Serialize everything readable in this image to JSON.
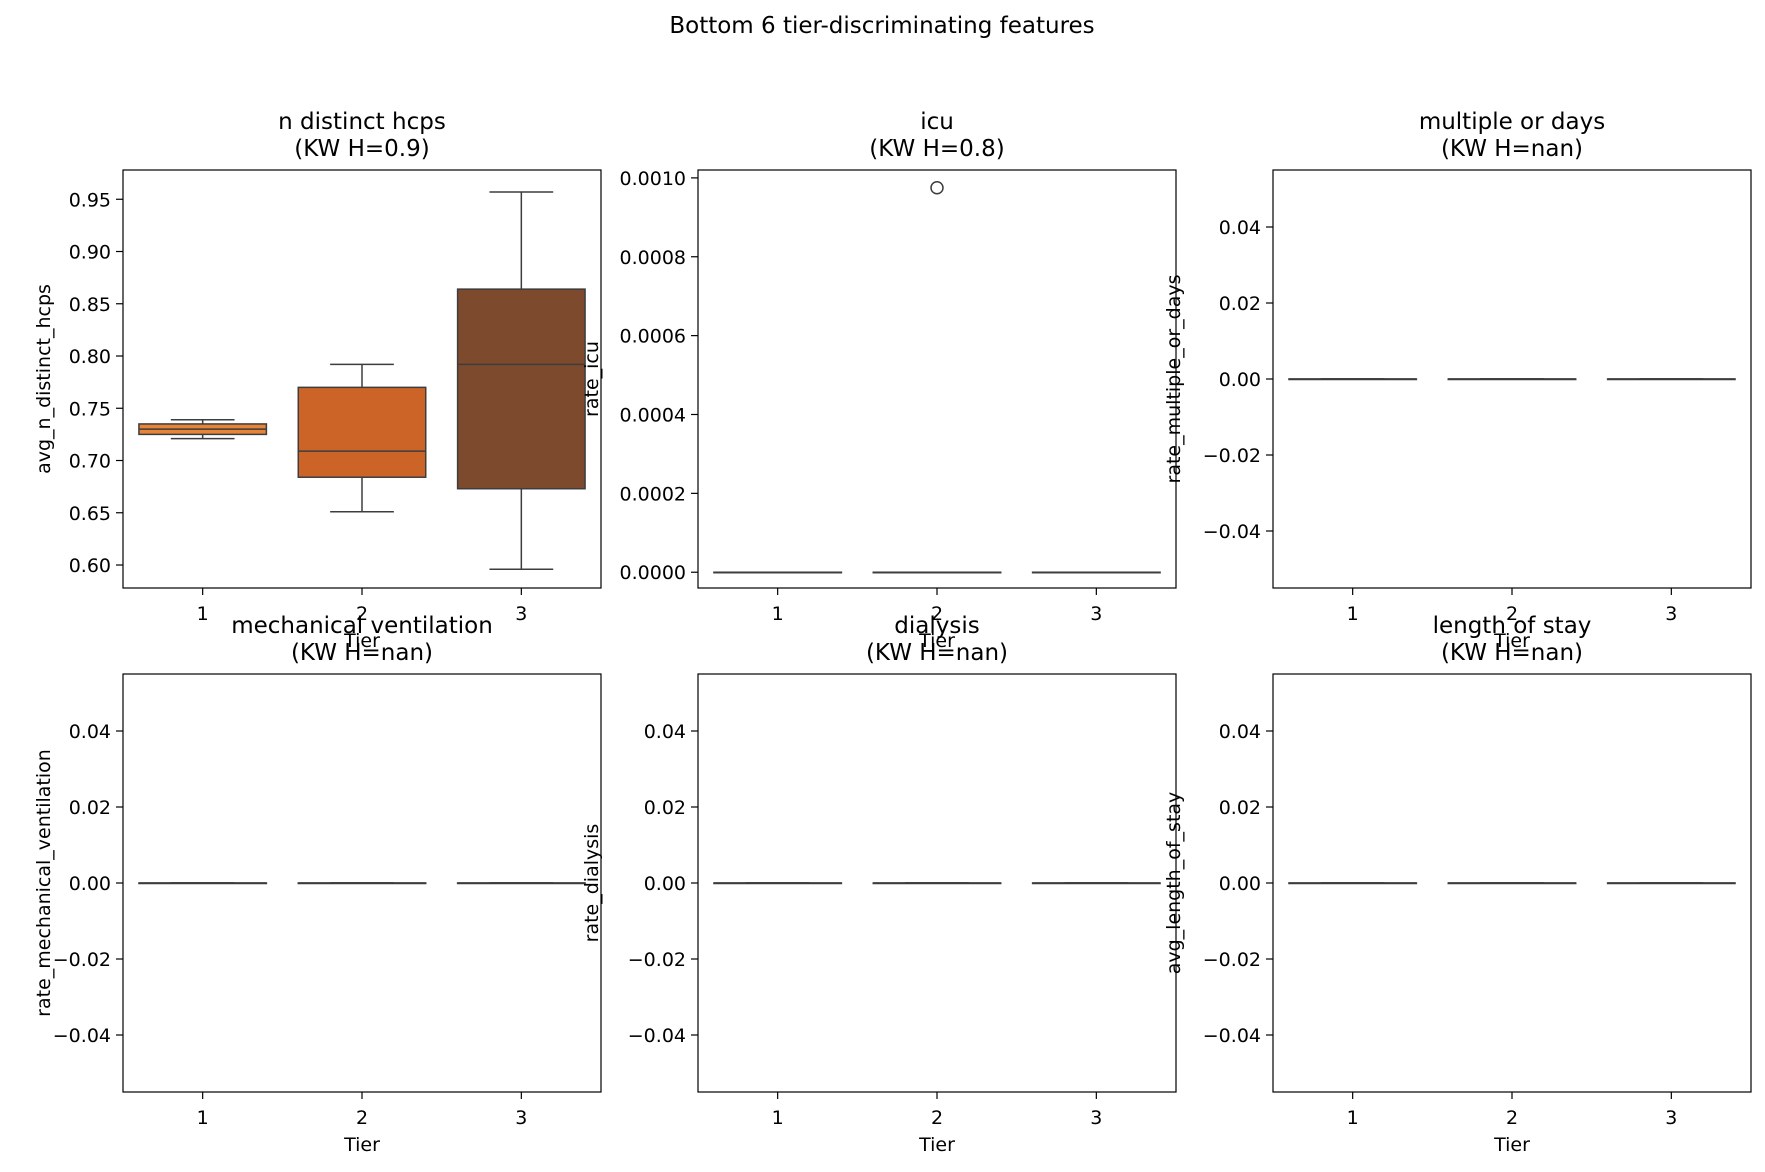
{
  "figure": {
    "title": "Bottom 6 tier-discriminating features"
  },
  "chart_data": [
    {
      "type": "box",
      "title": "n distinct hcps\n(KW H=0.9)",
      "xlabel": "Tier",
      "ylabel": "avg_n_distinct_hcps",
      "categories": [
        "1",
        "2",
        "3"
      ],
      "ylim": [
        0.578,
        0.978
      ],
      "yticks": [
        0.6,
        0.65,
        0.7,
        0.75,
        0.8,
        0.85,
        0.9,
        0.95
      ],
      "ytick_labels": [
        "0.60",
        "0.65",
        "0.70",
        "0.75",
        "0.80",
        "0.85",
        "0.90",
        "0.95"
      ],
      "boxes": [
        {
          "tier": "1",
          "whisker_low": 0.721,
          "q1": 0.725,
          "median": 0.73,
          "q3": 0.735,
          "whisker_high": 0.739,
          "color": "#e8833a",
          "outliers": []
        },
        {
          "tier": "2",
          "whisker_low": 0.651,
          "q1": 0.684,
          "median": 0.709,
          "q3": 0.77,
          "whisker_high": 0.792,
          "color": "#cc6428",
          "outliers": []
        },
        {
          "tier": "3",
          "whisker_low": 0.596,
          "q1": 0.673,
          "median": 0.792,
          "q3": 0.864,
          "whisker_high": 0.957,
          "color": "#7d4a2e",
          "outliers": []
        }
      ]
    },
    {
      "type": "box",
      "title": "icu\n(KW H=0.8)",
      "xlabel": "Tier",
      "ylabel": "rate_icu",
      "categories": [
        "1",
        "2",
        "3"
      ],
      "ylim": [
        -4e-05,
        0.00102
      ],
      "yticks": [
        0,
        0.0002,
        0.0004,
        0.0006,
        0.0008,
        0.001
      ],
      "ytick_labels": [
        "0.0000",
        "0.0002",
        "0.0004",
        "0.0006",
        "0.0008",
        "0.0010"
      ],
      "boxes": [
        {
          "tier": "1",
          "whisker_low": 0,
          "q1": 0,
          "median": 0,
          "q3": 0,
          "whisker_high": 0,
          "color": "#e8833a",
          "outliers": []
        },
        {
          "tier": "2",
          "whisker_low": 0,
          "q1": 0,
          "median": 0,
          "q3": 0,
          "whisker_high": 0,
          "color": "#cc6428",
          "outliers": [
            0.000975
          ]
        },
        {
          "tier": "3",
          "whisker_low": 0,
          "q1": 0,
          "median": 0,
          "q3": 0,
          "whisker_high": 0,
          "color": "#7d4a2e",
          "outliers": []
        }
      ]
    },
    {
      "type": "box",
      "title": "multiple or days\n(KW H=nan)",
      "xlabel": "Tier",
      "ylabel": "rate_multiple_or_days",
      "categories": [
        "1",
        "2",
        "3"
      ],
      "ylim": [
        -0.055,
        0.055
      ],
      "yticks": [
        -0.04,
        -0.02,
        0,
        0.02,
        0.04
      ],
      "ytick_labels": [
        "−0.04",
        "−0.02",
        "0.00",
        "0.02",
        "0.04"
      ],
      "boxes": [
        {
          "tier": "1",
          "whisker_low": 0,
          "q1": 0,
          "median": 0,
          "q3": 0,
          "whisker_high": 0,
          "color": "#e8833a",
          "outliers": []
        },
        {
          "tier": "2",
          "whisker_low": 0,
          "q1": 0,
          "median": 0,
          "q3": 0,
          "whisker_high": 0,
          "color": "#cc6428",
          "outliers": []
        },
        {
          "tier": "3",
          "whisker_low": 0,
          "q1": 0,
          "median": 0,
          "q3": 0,
          "whisker_high": 0,
          "color": "#7d4a2e",
          "outliers": []
        }
      ]
    },
    {
      "type": "box",
      "title": "mechanical ventilation\n(KW H=nan)",
      "xlabel": "Tier",
      "ylabel": "rate_mechanical_ventilation",
      "categories": [
        "1",
        "2",
        "3"
      ],
      "ylim": [
        -0.055,
        0.055
      ],
      "yticks": [
        -0.04,
        -0.02,
        0,
        0.02,
        0.04
      ],
      "ytick_labels": [
        "−0.04",
        "−0.02",
        "0.00",
        "0.02",
        "0.04"
      ],
      "boxes": [
        {
          "tier": "1",
          "whisker_low": 0,
          "q1": 0,
          "median": 0,
          "q3": 0,
          "whisker_high": 0,
          "color": "#e8833a",
          "outliers": []
        },
        {
          "tier": "2",
          "whisker_low": 0,
          "q1": 0,
          "median": 0,
          "q3": 0,
          "whisker_high": 0,
          "color": "#cc6428",
          "outliers": []
        },
        {
          "tier": "3",
          "whisker_low": 0,
          "q1": 0,
          "median": 0,
          "q3": 0,
          "whisker_high": 0,
          "color": "#7d4a2e",
          "outliers": []
        }
      ]
    },
    {
      "type": "box",
      "title": "dialysis\n(KW H=nan)",
      "xlabel": "Tier",
      "ylabel": "rate_dialysis",
      "categories": [
        "1",
        "2",
        "3"
      ],
      "ylim": [
        -0.055,
        0.055
      ],
      "yticks": [
        -0.04,
        -0.02,
        0,
        0.02,
        0.04
      ],
      "ytick_labels": [
        "−0.04",
        "−0.02",
        "0.00",
        "0.02",
        "0.04"
      ],
      "boxes": [
        {
          "tier": "1",
          "whisker_low": 0,
          "q1": 0,
          "median": 0,
          "q3": 0,
          "whisker_high": 0,
          "color": "#e8833a",
          "outliers": []
        },
        {
          "tier": "2",
          "whisker_low": 0,
          "q1": 0,
          "median": 0,
          "q3": 0,
          "whisker_high": 0,
          "color": "#cc6428",
          "outliers": []
        },
        {
          "tier": "3",
          "whisker_low": 0,
          "q1": 0,
          "median": 0,
          "q3": 0,
          "whisker_high": 0,
          "color": "#7d4a2e",
          "outliers": []
        }
      ]
    },
    {
      "type": "box",
      "title": "length of stay\n(KW H=nan)",
      "xlabel": "Tier",
      "ylabel": "avg_length_of_stay",
      "categories": [
        "1",
        "2",
        "3"
      ],
      "ylim": [
        -0.055,
        0.055
      ],
      "yticks": [
        -0.04,
        -0.02,
        0,
        0.02,
        0.04
      ],
      "ytick_labels": [
        "−0.04",
        "−0.02",
        "0.00",
        "0.02",
        "0.04"
      ],
      "boxes": [
        {
          "tier": "1",
          "whisker_low": 0,
          "q1": 0,
          "median": 0,
          "q3": 0,
          "whisker_high": 0,
          "color": "#e8833a",
          "outliers": []
        },
        {
          "tier": "2",
          "whisker_low": 0,
          "q1": 0,
          "median": 0,
          "q3": 0,
          "whisker_high": 0,
          "color": "#cc6428",
          "outliers": []
        },
        {
          "tier": "3",
          "whisker_low": 0,
          "q1": 0,
          "median": 0,
          "q3": 0,
          "whisker_high": 0,
          "color": "#7d4a2e",
          "outliers": []
        }
      ]
    }
  ]
}
